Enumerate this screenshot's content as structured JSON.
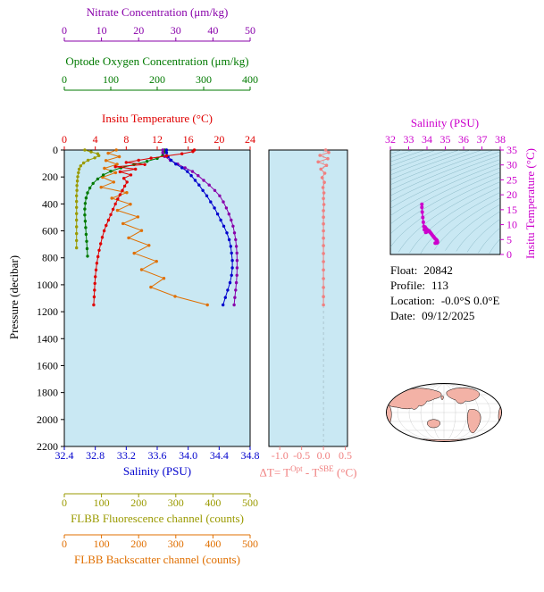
{
  "plot_bg": "#c9e8f3",
  "map": {
    "land_color": "#f3b2a6",
    "ocean_color": "#ffffff"
  },
  "pressure_axis": {
    "title": "Pressure (decibar)",
    "min": 0,
    "max": 2200,
    "ticks": [
      "0",
      "200",
      "400",
      "600",
      "800",
      "1000",
      "1200",
      "1400",
      "1600",
      "1800",
      "2000",
      "2200"
    ],
    "color": "#000000"
  },
  "float_info": {
    "lines": [
      {
        "label": "Float:",
        "value": "20842"
      },
      {
        "label": "Profile:",
        "value": "113"
      },
      {
        "label": "Location:",
        "value": "-0.0°S  0.0°E"
      },
      {
        "label": "Date:",
        "value": "09/12/2025"
      }
    ]
  },
  "chart_data": [
    {
      "id": "profile-plot",
      "type": "line",
      "ylabel": "Pressure (decibar)",
      "ylim": [
        0,
        2200
      ],
      "points_format": "[value, pressure_dbar]",
      "axes": {
        "nitrate": {
          "title": "Nitrate Concentration (μm/kg)",
          "min": 0,
          "max": 50,
          "ticks": [
            "0",
            "10",
            "20",
            "30",
            "40",
            "50"
          ],
          "color": "#8800aa"
        },
        "oxygen": {
          "title": "Optode Oxygen Concentration (μm/kg)",
          "min": 0,
          "max": 400,
          "ticks": [
            "0",
            "100",
            "200",
            "300",
            "400"
          ],
          "color": "#007a00"
        },
        "temperature": {
          "title": "Insitu Temperature (°C)",
          "min": 0,
          "max": 24,
          "ticks": [
            "0",
            "4",
            "8",
            "12",
            "16",
            "20",
            "24"
          ],
          "color": "#e00000"
        },
        "salinity": {
          "title": "Salinity (PSU)",
          "min": 32.4,
          "max": 34.8,
          "ticks": [
            "32.4",
            "32.8",
            "33.2",
            "33.6",
            "34.0",
            "34.4",
            "34.8"
          ],
          "color": "#0000cd"
        },
        "fluorescence": {
          "title": "FLBB Fluorescence channel (counts)",
          "min": 0,
          "max": 500,
          "ticks": [
            "0",
            "100",
            "200",
            "300",
            "400",
            "500"
          ],
          "color": "#9a9a00"
        },
        "backscatter": {
          "title": "FLBB Backscatter channel (counts)",
          "min": 0,
          "max": 500,
          "ticks": [
            "0",
            "100",
            "200",
            "300",
            "400",
            "500"
          ],
          "color": "#e06f00"
        }
      },
      "series": [
        {
          "name": "fluorescence",
          "axis": "fluorescence",
          "color": "#9a9a00",
          "points": [
            [
              55,
              0
            ],
            [
              72,
              14
            ],
            [
              90,
              28
            ],
            [
              93,
              42
            ],
            [
              82,
              58
            ],
            [
              64,
              76
            ],
            [
              52,
              96
            ],
            [
              44,
              118
            ],
            [
              40,
              142
            ],
            [
              38,
              168
            ],
            [
              36,
              198
            ],
            [
              35,
              230
            ],
            [
              34,
              264
            ],
            [
              34,
              300
            ],
            [
              33,
              340
            ],
            [
              33,
              382
            ],
            [
              33,
              426
            ],
            [
              33,
              472
            ],
            [
              33,
              520
            ],
            [
              33,
              570
            ],
            [
              33,
              620
            ],
            [
              33,
              672
            ],
            [
              33,
              726
            ]
          ]
        },
        {
          "name": "backscatter",
          "axis": "backscatter",
          "color": "#e06f00",
          "points": [
            [
              140,
              0
            ],
            [
              118,
              24
            ],
            [
              148,
              50
            ],
            [
              112,
              78
            ],
            [
              142,
              106
            ],
            [
              108,
              136
            ],
            [
              138,
              168
            ],
            [
              103,
              202
            ],
            [
              133,
              238
            ],
            [
              99,
              276
            ],
            [
              168,
              316
            ],
            [
              128,
              358
            ],
            [
              178,
              402
            ],
            [
              143,
              448
            ],
            [
              198,
              496
            ],
            [
              158,
              546
            ],
            [
              208,
              598
            ],
            [
              173,
              652
            ],
            [
              228,
              708
            ],
            [
              188,
              766
            ],
            [
              248,
              826
            ],
            [
              208,
              888
            ],
            [
              268,
              952
            ],
            [
              233,
              1018
            ],
            [
              298,
              1086
            ],
            [
              385,
              1150
            ]
          ]
        },
        {
          "name": "oxygen",
          "axis": "oxygen",
          "color": "#007a00",
          "points": [
            [
              216,
              0
            ],
            [
              215,
              18
            ],
            [
              212,
              40
            ],
            [
              200,
              62
            ],
            [
              178,
              84
            ],
            [
              150,
              108
            ],
            [
              122,
              132
            ],
            [
              100,
              158
            ],
            [
              84,
              185
            ],
            [
              72,
              215
            ],
            [
              62,
              248
            ],
            [
              55,
              282
            ],
            [
              50,
              318
            ],
            [
              47,
              356
            ],
            [
              45,
              396
            ],
            [
              44,
              438
            ],
            [
              44,
              482
            ],
            [
              45,
              528
            ],
            [
              46,
              576
            ],
            [
              47,
              626
            ],
            [
              48,
              678
            ],
            [
              49,
              732
            ],
            [
              50,
              788
            ]
          ]
        },
        {
          "name": "nitrate",
          "axis": "nitrate",
          "color": "#8800aa",
          "points": [
            [
              26.5,
              0
            ],
            [
              26.5,
              20
            ],
            [
              27,
              48
            ],
            [
              28.5,
              76
            ],
            [
              30.5,
              104
            ],
            [
              32.5,
              132
            ],
            [
              34.5,
              160
            ],
            [
              36,
              190
            ],
            [
              37.5,
              225
            ],
            [
              39,
              260
            ],
            [
              40.5,
              300
            ],
            [
              41.8,
              340
            ],
            [
              42.8,
              385
            ],
            [
              43.6,
              430
            ],
            [
              44.3,
              475
            ],
            [
              44.9,
              520
            ],
            [
              45.4,
              565
            ],
            [
              45.8,
              615
            ],
            [
              46.1,
              665
            ],
            [
              46.3,
              715
            ],
            [
              46.45,
              765
            ],
            [
              46.5,
              820
            ],
            [
              46.5,
              875
            ],
            [
              46.45,
              930
            ],
            [
              46.3,
              985
            ],
            [
              46.1,
              1040
            ],
            [
              45.9,
              1095
            ],
            [
              45.7,
              1150
            ]
          ]
        },
        {
          "name": "salinity",
          "axis": "salinity",
          "color": "#0000cd",
          "points": [
            [
              33.72,
              0
            ],
            [
              33.72,
              20
            ],
            [
              33.74,
              48
            ],
            [
              33.78,
              76
            ],
            [
              33.84,
              104
            ],
            [
              33.92,
              132
            ],
            [
              33.99,
              160
            ],
            [
              34.04,
              190
            ],
            [
              34.09,
              225
            ],
            [
              34.14,
              260
            ],
            [
              34.19,
              300
            ],
            [
              34.24,
              340
            ],
            [
              34.29,
              385
            ],
            [
              34.34,
              430
            ],
            [
              34.38,
              475
            ],
            [
              34.42,
              520
            ],
            [
              34.46,
              565
            ],
            [
              34.5,
              615
            ],
            [
              34.53,
              665
            ],
            [
              34.55,
              715
            ],
            [
              34.56,
              765
            ],
            [
              34.57,
              820
            ],
            [
              34.57,
              875
            ],
            [
              34.56,
              930
            ],
            [
              34.54,
              985
            ],
            [
              34.51,
              1040
            ],
            [
              34.48,
              1095
            ],
            [
              34.45,
              1150
            ]
          ]
        },
        {
          "name": "temperature",
          "axis": "temperature",
          "color": "#e00000",
          "points": [
            [
              16.8,
              0
            ],
            [
              16.6,
              12
            ],
            [
              15.2,
              28
            ],
            [
              13.2,
              44
            ],
            [
              11.2,
              60
            ],
            [
              9.6,
              76
            ],
            [
              8.0,
              92
            ],
            [
              10.4,
              108
            ],
            [
              6.6,
              124
            ],
            [
              9.2,
              142
            ],
            [
              7.2,
              162
            ],
            [
              8.6,
              185
            ],
            [
              7.7,
              210
            ],
            [
              8.1,
              238
            ],
            [
              7.8,
              268
            ],
            [
              7.5,
              300
            ],
            [
              7.2,
              332
            ],
            [
              6.9,
              364
            ],
            [
              6.6,
              400
            ],
            [
              6.3,
              440
            ],
            [
              6.0,
              480
            ],
            [
              5.7,
              520
            ],
            [
              5.4,
              560
            ],
            [
              5.15,
              600
            ],
            [
              4.9,
              648
            ],
            [
              4.7,
              696
            ],
            [
              4.5,
              744
            ],
            [
              4.35,
              792
            ],
            [
              4.2,
              840
            ],
            [
              4.1,
              890
            ],
            [
              4.0,
              940
            ],
            [
              3.95,
              990
            ],
            [
              3.9,
              1040
            ],
            [
              3.85,
              1090
            ],
            [
              3.8,
              1150
            ]
          ]
        }
      ]
    },
    {
      "id": "delta-temperature-plot",
      "type": "scatter",
      "xlabel_parts": {
        "prefix": "ΔT= T",
        "sup1": "Opt",
        "mid": " - T",
        "sup2": "SBE",
        "suffix": " (°C)"
      },
      "xlim": [
        -1.25,
        0.55
      ],
      "x_ticks": [
        "-1.0",
        "-0.5",
        "0.0",
        "0.5"
      ],
      "ylim": [
        0,
        2200
      ],
      "color": "#f08080",
      "points_format": "[delta_T_degC, pressure_dbar]",
      "points": [
        [
          0.05,
          0
        ],
        [
          0.12,
          18
        ],
        [
          -0.08,
          40
        ],
        [
          0.1,
          64
        ],
        [
          -0.12,
          88
        ],
        [
          0.07,
          114
        ],
        [
          -0.06,
          142
        ],
        [
          0.03,
          172
        ],
        [
          -0.03,
          205
        ],
        [
          0.02,
          240
        ],
        [
          -0.01,
          278
        ],
        [
          0.01,
          318
        ],
        [
          0.0,
          360
        ],
        [
          0.01,
          404
        ],
        [
          0.0,
          450
        ],
        [
          0.0,
          498
        ],
        [
          0.0,
          548
        ],
        [
          0.0,
          600
        ],
        [
          0.0,
          654
        ],
        [
          0.0,
          710
        ],
        [
          0.0,
          768
        ],
        [
          0.0,
          828
        ],
        [
          0.0,
          890
        ],
        [
          0.0,
          954
        ],
        [
          0.0,
          1020
        ],
        [
          0.0,
          1088
        ],
        [
          0.0,
          1150
        ]
      ]
    },
    {
      "id": "ts-diagram",
      "type": "scatter",
      "title": "Salinity (PSU)",
      "xlim": [
        32,
        38
      ],
      "x_ticks": [
        "32",
        "33",
        "34",
        "35",
        "36",
        "37",
        "38"
      ],
      "ylabel": "Insitu Temperature (°C)",
      "ylim": [
        0,
        35
      ],
      "y_ticks": [
        "0",
        "5",
        "10",
        "15",
        "20",
        "25",
        "30",
        "35"
      ],
      "color": "#cc00cc",
      "contour_color": "#55909f",
      "contours": "potential density isopycnals, sigma 18 to 30.5 step 0.5",
      "points_format": "[salinity_PSU, temperature_degC]",
      "points": [
        [
          33.72,
          16.8
        ],
        [
          33.72,
          15.8
        ],
        [
          33.74,
          14.2
        ],
        [
          33.77,
          12.4
        ],
        [
          33.8,
          10.8
        ],
        [
          33.83,
          9.4
        ],
        [
          33.86,
          8.3
        ],
        [
          33.9,
          9.2
        ],
        [
          33.93,
          7.4
        ],
        [
          33.97,
          8.6
        ],
        [
          34.0,
          7.6
        ],
        [
          34.04,
          8.2
        ],
        [
          34.08,
          7.8
        ],
        [
          34.12,
          7.9
        ],
        [
          34.16,
          7.5
        ],
        [
          34.2,
          7.2
        ],
        [
          34.24,
          6.9
        ],
        [
          34.29,
          6.5
        ],
        [
          34.34,
          6.1
        ],
        [
          34.38,
          5.8
        ],
        [
          34.42,
          5.5
        ],
        [
          34.46,
          5.2
        ],
        [
          34.5,
          5.0
        ],
        [
          34.53,
          4.8
        ],
        [
          34.55,
          4.6
        ],
        [
          34.56,
          4.4
        ],
        [
          34.57,
          4.2
        ],
        [
          34.57,
          4.05
        ],
        [
          34.56,
          3.95
        ],
        [
          34.54,
          3.9
        ],
        [
          34.51,
          3.87
        ],
        [
          34.48,
          3.84
        ],
        [
          34.45,
          3.8
        ]
      ]
    }
  ]
}
